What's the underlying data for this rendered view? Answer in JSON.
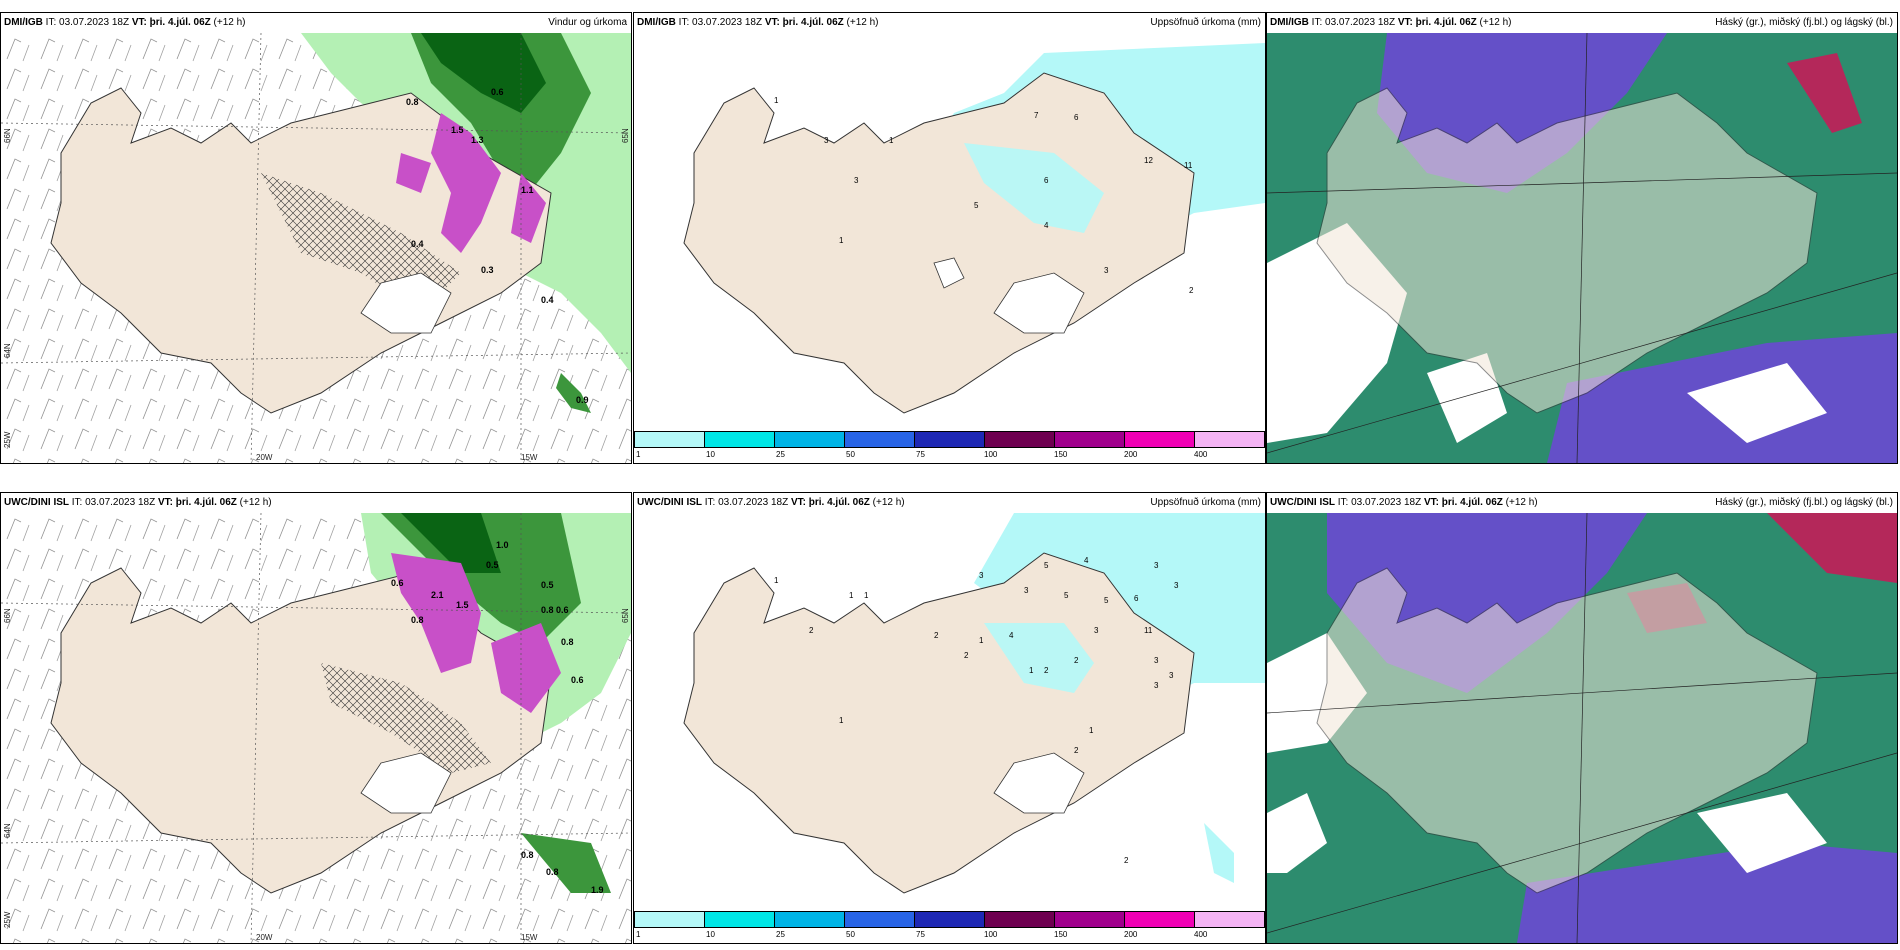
{
  "panels": [
    {
      "id": "top-left",
      "source": "DMI/IGB",
      "it_text": "IT: 03.07.2023 18Z",
      "vt_text": "VT: þri. 4.júl. 06Z",
      "lead_text": "(+12 h)",
      "title_right": "Vindur og úrkoma",
      "lat_labels": [
        "66N",
        "64N",
        "65N",
        "25W"
      ],
      "lon_labels": [
        "20W",
        "15W"
      ],
      "values": [
        "0.8",
        "0.6",
        "0.4",
        "1.3",
        "1.5",
        "1.1",
        "0.9",
        "0.4",
        "0.3"
      ]
    },
    {
      "id": "top-middle",
      "source": "DMI/IGB",
      "it_text": "IT: 03.07.2023 18Z",
      "vt_text": "VT: þri. 4.júl. 06Z",
      "lead_text": "(+12 h)",
      "title_right": "Uppsöfnuð úrkoma (mm)",
      "values": [
        "1",
        "3",
        "1",
        "3",
        "7",
        "6",
        "12",
        "11",
        "5",
        "6",
        "4",
        "3",
        "2",
        "1"
      ]
    },
    {
      "id": "top-right",
      "source": "DMI/IGB",
      "it_text": "IT: 03.07.2023 18Z",
      "vt_text": "VT: þri. 4.júl. 06Z",
      "lead_text": "(+12 h)",
      "title_right": "Háský (gr.), miðský (fj.bl.) og lágský (bl.)"
    },
    {
      "id": "bottom-left",
      "source": "UWC/DINI ISL",
      "it_text": "IT: 03.07.2023 18Z",
      "vt_text": "VT: þri. 4.júl. 06Z",
      "lead_text": "(+12 h)",
      "title_right": "",
      "lat_labels": [
        "66N",
        "64N",
        "65N",
        "25W"
      ],
      "lon_labels": [
        "20W",
        "15W"
      ],
      "values": [
        "1.0",
        "0.5",
        "0.5",
        "0.6",
        "0.6",
        "0.8",
        "0.8",
        "0.8",
        "0.6",
        "0.8",
        "0.8",
        "1.9",
        "1.5",
        "2.1"
      ]
    },
    {
      "id": "bottom-middle",
      "source": "UWC/DINI ISL",
      "it_text": "IT: 03.07.2023 18Z",
      "vt_text": "VT: þri. 4.júl. 06Z",
      "lead_text": "(+12 h)",
      "title_right": "Uppsöfnuð úrkoma (mm)",
      "values": [
        "1",
        "2",
        "1",
        "1",
        "3",
        "5",
        "4",
        "3",
        "3",
        "3",
        "5",
        "5",
        "6",
        "3",
        "11",
        "1",
        "2",
        "2",
        "1",
        "4",
        "2",
        "1",
        "2",
        "3",
        "3",
        "3",
        "2",
        "2",
        "1"
      ]
    },
    {
      "id": "bottom-right",
      "source": "UWC/DINI ISL",
      "it_text": "IT: 03.07.2023 18Z",
      "vt_text": "VT: þri. 4.júl. 06Z",
      "lead_text": "(+12 h)",
      "title_right": "Háský (gr.), miðský (fj.bl.) og lágský (bl.)"
    }
  ],
  "colorbar": {
    "labels": [
      "1",
      "10",
      "25",
      "50",
      "75",
      "100",
      "150",
      "200",
      "400"
    ],
    "colors": [
      "#b4f8f8",
      "#00e6e6",
      "#00b4e6",
      "#2864e6",
      "#1e28b4",
      "#6e0050",
      "#a0008c",
      "#f000b4",
      "#f4b4f4"
    ]
  },
  "colors": {
    "land": "#f2e6d8",
    "sea_precip_light": "#b4f8f8",
    "green_light": "#b4f0b4",
    "green_dark": "#0a6414",
    "magenta": "#c850c8",
    "cloud_high": "#2d8c6e",
    "cloud_mid": "#6450c8",
    "cloud_low": "#3c46dc"
  }
}
